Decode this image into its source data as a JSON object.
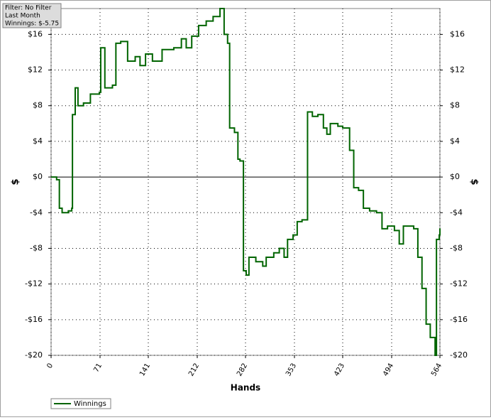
{
  "chart_data": {
    "type": "line",
    "drawstyle": "steps-post",
    "annotations": [
      "Filter: No Filter",
      "Last Month",
      "Winnings: $-5.75"
    ],
    "xlabel": "Hands",
    "ylabel": "$",
    "y2label": "$",
    "xlim": [
      0,
      564
    ],
    "xticks": [
      0,
      71,
      141,
      212,
      282,
      353,
      423,
      494,
      564
    ],
    "ylim": [
      -20,
      18.9
    ],
    "yticks": [
      {
        "value": -20,
        "label": "-$20"
      },
      {
        "value": -16,
        "label": "-$16"
      },
      {
        "value": -12,
        "label": "-$12"
      },
      {
        "value": -8,
        "label": "-$8"
      },
      {
        "value": -4,
        "label": "-$4"
      },
      {
        "value": 0,
        "label": "$0"
      },
      {
        "value": 4,
        "label": "$4"
      },
      {
        "value": 8,
        "label": "$8"
      },
      {
        "value": 12,
        "label": "$12"
      },
      {
        "value": 16,
        "label": "$16"
      }
    ],
    "y2lim": [
      -20,
      18.9
    ],
    "y2ticks": [
      {
        "value": -20,
        "label": "-$20"
      },
      {
        "value": -16,
        "label": "-$16"
      },
      {
        "value": -12,
        "label": "-$12"
      },
      {
        "value": -8,
        "label": "-$8"
      },
      {
        "value": -4,
        "label": "-$4"
      },
      {
        "value": 0,
        "label": "$0"
      },
      {
        "value": 4,
        "label": "$4"
      },
      {
        "value": 8,
        "label": "$8"
      },
      {
        "value": 12,
        "label": "$12"
      },
      {
        "value": 16,
        "label": "$16"
      }
    ],
    "grid": true,
    "legend": "lower left",
    "series": [
      {
        "name": "Winnings",
        "color": "#006400",
        "x": [
          0,
          8,
          12,
          16,
          25,
          30,
          31,
          35,
          39,
          47,
          57,
          70,
          72,
          76,
          78,
          89,
          94,
          101,
          111,
          122,
          129,
          137,
          147,
          161,
          178,
          189,
          196,
          204,
          214,
          225,
          235,
          245,
          251,
          256,
          259,
          266,
          271,
          274,
          279,
          283,
          287,
          297,
          307,
          312,
          323,
          331,
          338,
          343,
          351,
          357,
          364,
          371,
          372,
          379,
          387,
          395,
          400,
          405,
          416,
          423,
          430,
          433,
          439,
          446,
          453,
          462,
          472,
          480,
          488,
          498,
          505,
          511,
          526,
          532,
          538,
          544,
          550,
          557,
          559,
          563,
          564
        ],
        "values": [
          0,
          -0.3,
          -3.5,
          -4,
          -3.8,
          -3.5,
          7,
          10,
          8,
          8.3,
          9.3,
          9.5,
          14.5,
          14.5,
          10,
          10.3,
          15,
          15.2,
          13,
          13.5,
          12.5,
          13.8,
          13,
          14.3,
          14.5,
          15.5,
          14.5,
          15.8,
          17,
          17.5,
          18,
          18.9,
          16,
          15,
          5.5,
          5,
          2,
          1.8,
          -10.5,
          -11,
          -9,
          -9.5,
          -10,
          -9,
          -8.5,
          -8,
          -9,
          -7,
          -6.5,
          -5,
          -4.8,
          -4.8,
          7.3,
          6.8,
          7,
          5.5,
          4.8,
          6,
          5.7,
          5.5,
          5.5,
          3,
          -1.2,
          -1.5,
          -3.5,
          -3.8,
          -4,
          -5.8,
          -5.5,
          -6,
          -7.5,
          -5.5,
          -5.8,
          -9,
          -12.5,
          -16.5,
          -18,
          -20,
          -7,
          -6.5,
          -5.75
        ]
      }
    ]
  }
}
